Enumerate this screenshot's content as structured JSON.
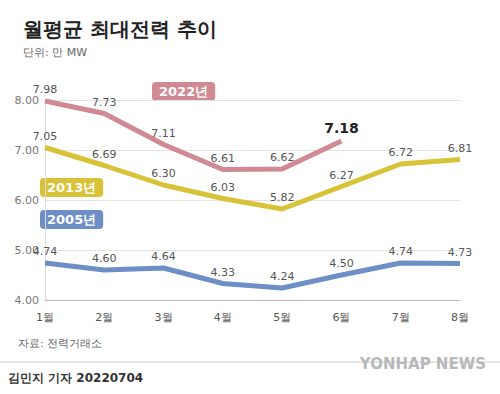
{
  "chart_data": {
    "type": "line",
    "title": "월평균 최대전력 추이",
    "subtitle": "단위: 만 MW",
    "categories": [
      "1월",
      "2월",
      "3월",
      "4월",
      "5월",
      "6월",
      "7월",
      "8월"
    ],
    "series": [
      {
        "name": "2022년",
        "color": "#cf8a93",
        "values": [
          7.98,
          7.73,
          7.11,
          6.61,
          6.62,
          7.18,
          null,
          null
        ],
        "value_labels": [
          "7.98",
          "7.73",
          "7.11",
          "6.61",
          "6.62",
          "7.18",
          null,
          null
        ]
      },
      {
        "name": "2013년",
        "color": "#d8c338",
        "values": [
          7.05,
          6.69,
          6.3,
          6.03,
          5.82,
          6.27,
          6.72,
          6.81
        ],
        "value_labels": [
          "7.05",
          "6.69",
          "6.30",
          "6.03",
          "5.82",
          "6.27",
          "6.72",
          "6.81"
        ]
      },
      {
        "name": "2005년",
        "color": "#6e8fc6",
        "values": [
          4.74,
          4.6,
          4.64,
          4.33,
          4.24,
          4.5,
          4.74,
          4.73
        ],
        "value_labels": [
          "4.74",
          "4.60",
          "4.64",
          "4.33",
          "4.24",
          "4.50",
          "4.74",
          "4.73"
        ]
      }
    ],
    "ylim": [
      4,
      8
    ],
    "yticks": [
      {
        "value": 4,
        "label": "4.00"
      },
      {
        "value": 5,
        "label": "5.00"
      },
      {
        "value": 6,
        "label": "6.00"
      },
      {
        "value": 7,
        "label": "7.00"
      },
      {
        "value": 8,
        "label": "8.00"
      }
    ],
    "grid": true,
    "data_labels": true,
    "source": "자료: 전력거래소",
    "byline": "김민지 기자 20220704",
    "logo": "YONHAP NEWS"
  }
}
